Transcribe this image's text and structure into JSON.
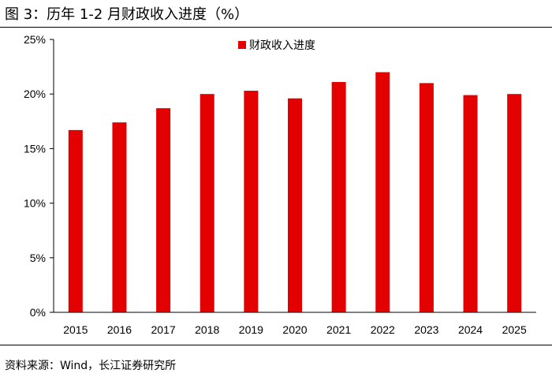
{
  "title": "图 3：历年 1-2 月财政收入进度（%）",
  "source": "资料来源：Wind，长江证券研究所",
  "chart_data": {
    "type": "bar",
    "categories": [
      "2015",
      "2016",
      "2017",
      "2018",
      "2019",
      "2020",
      "2021",
      "2022",
      "2023",
      "2024",
      "2025"
    ],
    "series": [
      {
        "name": "财政收入进度",
        "color": "#e30000",
        "values": [
          16.7,
          17.4,
          18.7,
          20.0,
          20.3,
          19.6,
          21.1,
          22.0,
          21.0,
          19.9,
          20.0
        ]
      }
    ],
    "ylim": [
      0,
      25
    ],
    "yticks": [
      "0%",
      "5%",
      "10%",
      "15%",
      "20%",
      "25%"
    ],
    "ytick_values": [
      0,
      5,
      10,
      15,
      20,
      25
    ],
    "legend_position": "top-center",
    "grid": false
  }
}
